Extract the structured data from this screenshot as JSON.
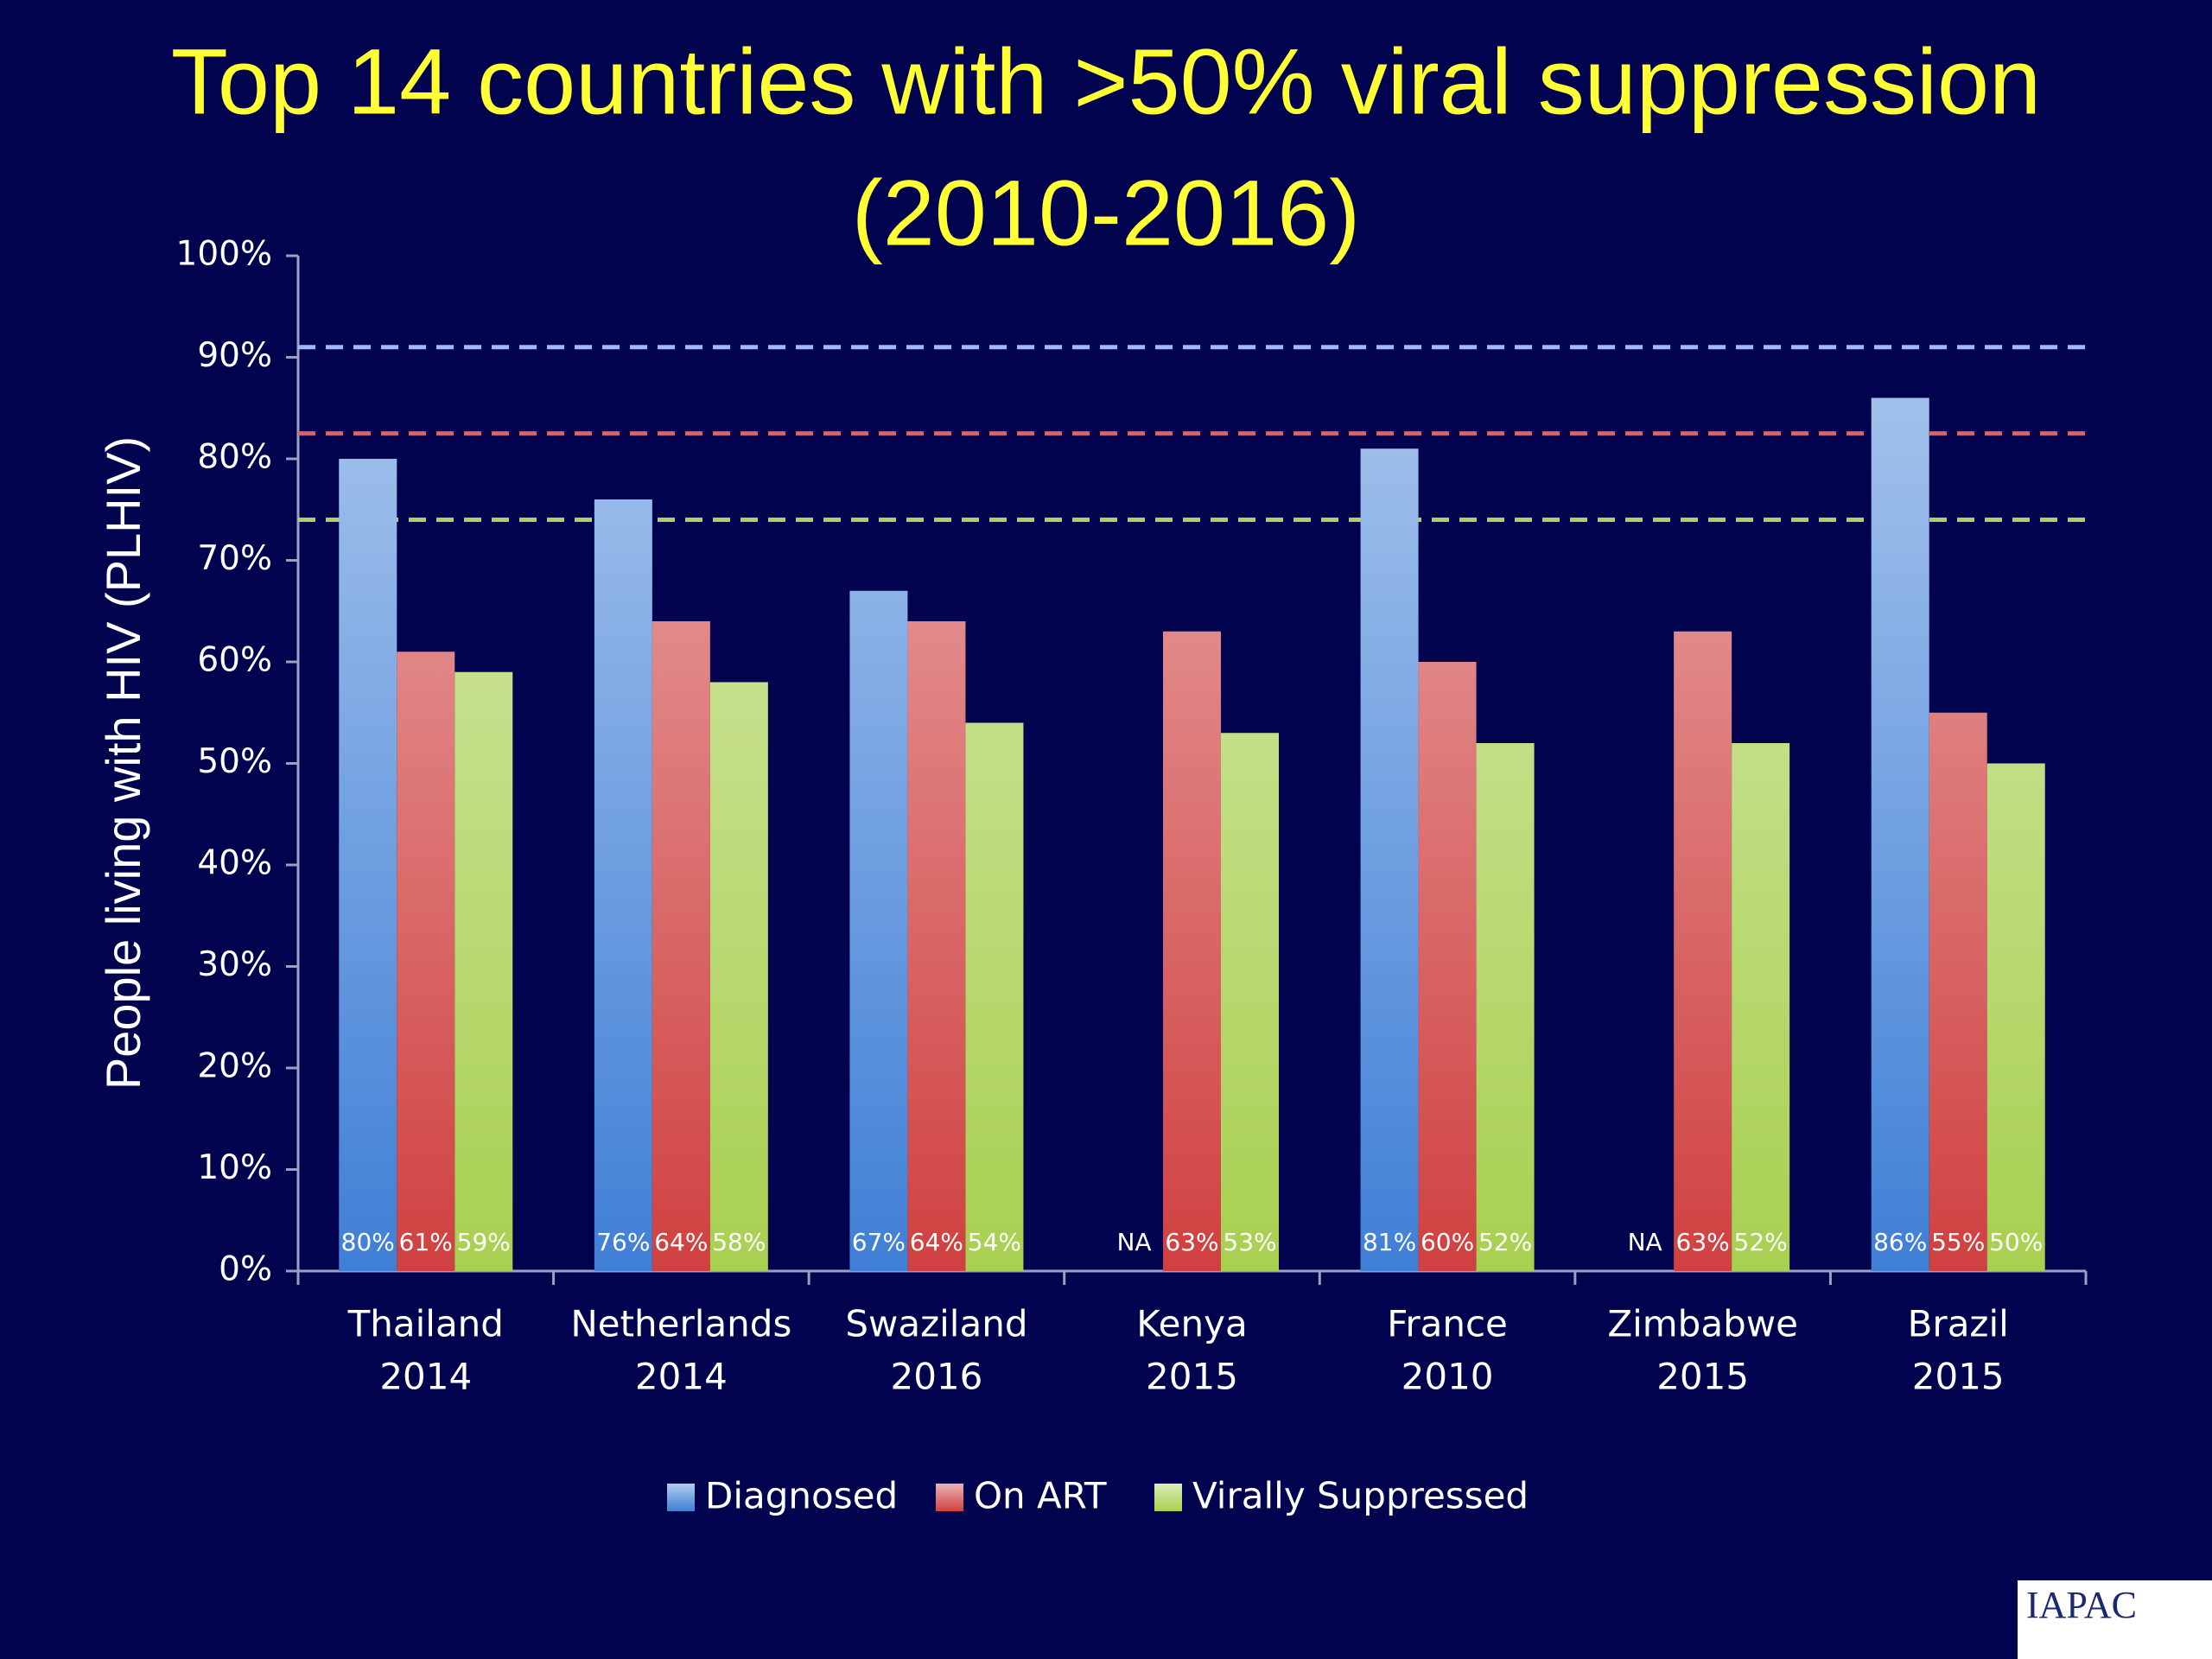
{
  "chart_data": {
    "type": "bar",
    "title": [
      "Top 14 countries with >50% viral suppression",
      "(2010-2016)"
    ],
    "y_label": "People living with HIV (PLHIV)",
    "categories": [
      [
        "Thailand",
        "2014"
      ],
      [
        "Netherlands",
        "2014"
      ],
      [
        "Swaziland",
        "2016"
      ],
      [
        "Kenya",
        "2015"
      ],
      [
        "France",
        "2010"
      ],
      [
        "Zimbabwe",
        "2015"
      ],
      [
        "Brazil",
        "2015"
      ]
    ],
    "series": [
      {
        "name": "Diagnosed",
        "color": "#3f7fd6",
        "values": [
          80,
          76,
          67,
          null,
          81,
          null,
          86
        ],
        "value_labels": [
          "80%",
          "76%",
          "67%",
          "NA",
          "81%",
          "NA",
          "86%"
        ]
      },
      {
        "name": "On ART",
        "color": "#d04040",
        "values": [
          61,
          64,
          64,
          63,
          60,
          63,
          55
        ],
        "value_labels": [
          "61%",
          "64%",
          "64%",
          "63%",
          "60%",
          "63%",
          "55%"
        ]
      },
      {
        "name": "Virally Suppressed",
        "color": "#a8d050",
        "values": [
          59,
          58,
          54,
          53,
          52,
          52,
          50
        ],
        "value_labels": [
          "59%",
          "58%",
          "54%",
          "53%",
          "52%",
          "52%",
          "50%"
        ]
      }
    ],
    "reference_lines": [
      {
        "value": 91,
        "color": "#a0b8ff"
      },
      {
        "value": 82.5,
        "color": "#e06060"
      },
      {
        "value": 74,
        "color": "#b0d060"
      }
    ],
    "ylim": [
      0,
      100
    ],
    "yticks": [
      {
        "value": 0,
        "label": "0%"
      },
      {
        "value": 10,
        "label": "10%"
      },
      {
        "value": 20,
        "label": "20%"
      },
      {
        "value": 30,
        "label": "30%"
      },
      {
        "value": 40,
        "label": "40%"
      },
      {
        "value": 50,
        "label": "50%"
      },
      {
        "value": 60,
        "label": "60%"
      },
      {
        "value": 70,
        "label": "70%"
      },
      {
        "value": 80,
        "label": "80%"
      },
      {
        "value": 90,
        "label": "90%"
      },
      {
        "value": 100,
        "label": "100%"
      }
    ],
    "legend": "bottom",
    "logo": "IAPAC"
  }
}
